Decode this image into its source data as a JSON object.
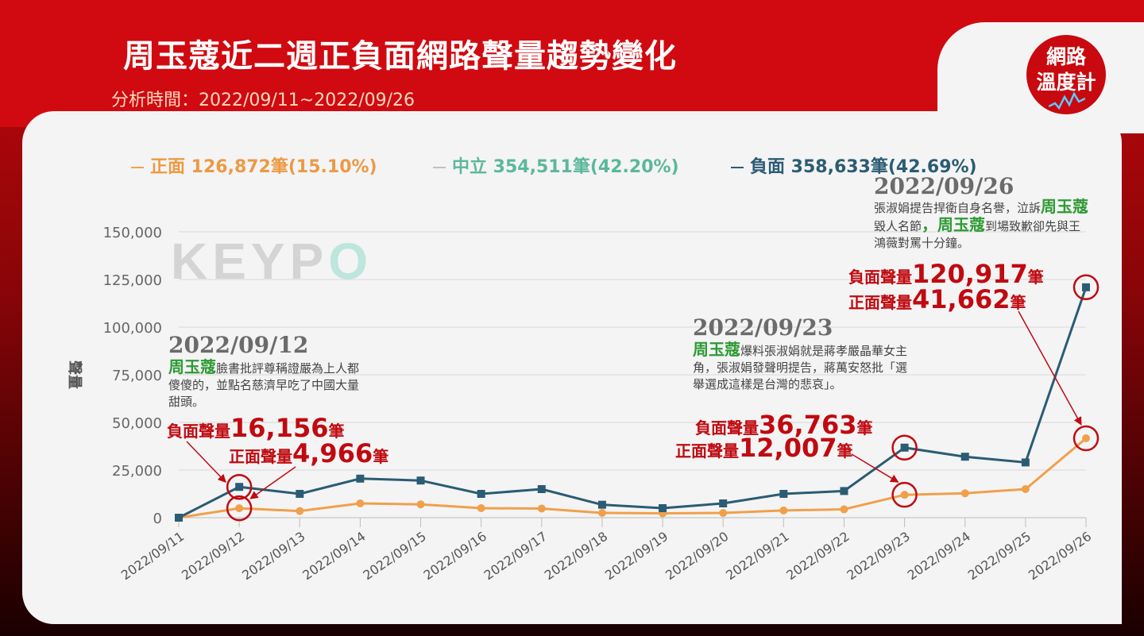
{
  "title": "周玉蔻近二週正負面網路聲量趨勢變化",
  "subtitle": "分析時間：2022/09/11~2022/09/26",
  "logo": {
    "line1": "網路",
    "line2": "溫度計"
  },
  "watermark": {
    "main": "KEYP",
    "accent": "O"
  },
  "legend": [
    {
      "label": "正面 126,872筆(15.10%)",
      "color": "#f0a04b"
    },
    {
      "label": "中立 354,511筆(42.20%)",
      "color": "#5bb89a"
    },
    {
      "label": "負面 358,633筆(42.69%)",
      "color": "#2b5c73"
    }
  ],
  "chart_data": {
    "type": "line",
    "ylabel": "聲量",
    "ylim": [
      0,
      150000
    ],
    "yticks": [
      "0",
      "25,000",
      "50,000",
      "75,000",
      "100,000",
      "125,000",
      "150,000"
    ],
    "categories": [
      "2022/09/11",
      "2022/09/12",
      "2022/09/13",
      "2022/09/14",
      "2022/09/15",
      "2022/09/16",
      "2022/09/17",
      "2022/09/18",
      "2022/09/19",
      "2022/09/20",
      "2022/09/21",
      "2022/09/22",
      "2022/09/23",
      "2022/09/24",
      "2022/09/25",
      "2022/09/26"
    ],
    "series": [
      {
        "name": "正面",
        "color": "#f0a04b",
        "values": [
          0,
          4966,
          3500,
          7500,
          7000,
          5000,
          4800,
          2500,
          2300,
          2500,
          3800,
          4400,
          12007,
          12800,
          15000,
          41662
        ]
      },
      {
        "name": "負面",
        "color": "#2b5c73",
        "values": [
          0,
          16156,
          12500,
          20500,
          19500,
          12500,
          15000,
          6800,
          5000,
          7500,
          12500,
          14000,
          36763,
          32000,
          29000,
          120917
        ]
      }
    ],
    "grid": true
  },
  "annotations": {
    "a1": {
      "date": "2022/09/12",
      "name": "周玉蔻",
      "text": "臉書批評尊稱證嚴為上人都傻傻的，並點名慈濟早吃了中國大量甜頭。",
      "neg_label": "負面聲量",
      "neg_value": "16,156",
      "pos_label": "正面聲量",
      "pos_value": "4,966",
      "unit": "筆"
    },
    "a2": {
      "date": "2022/09/23",
      "name": "周玉蔻",
      "text": "爆料張淑娟就是蔣孝嚴晶華女主角，張淑娟發聲明提告，蔣萬安怒批「選舉選成這樣是台灣的悲哀」。",
      "neg_label": "負面聲量",
      "neg_value": "36,763",
      "pos_label": "正面聲量",
      "pos_value": "12,007",
      "unit": "筆"
    },
    "a3": {
      "date": "2022/09/26",
      "pre": "張淑娟提告捍衛自身名譽，泣訴",
      "name": "周玉蔻",
      "mid": "毀人名節",
      "sep": "，",
      "name2": "周玉蔻",
      "post": "到場致歉卻先與王鴻薇對罵十分鐘。",
      "neg_label": "負面聲量",
      "neg_value": "120,917",
      "pos_label": "正面聲量",
      "pos_value": "41,662",
      "unit": "筆"
    }
  }
}
